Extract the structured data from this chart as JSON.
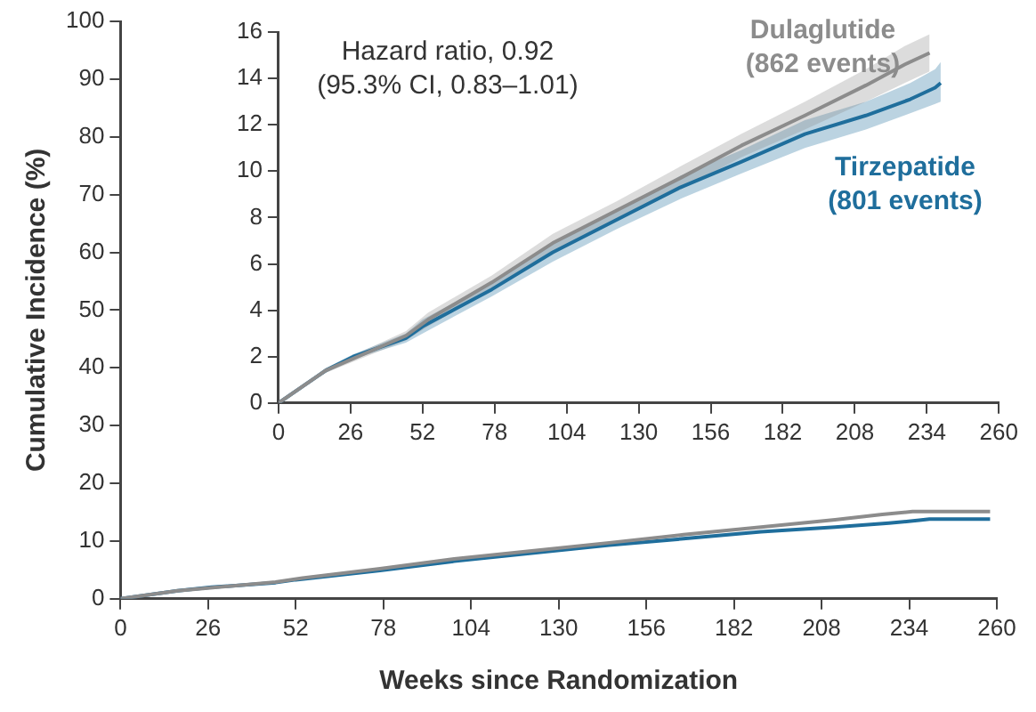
{
  "chart_data": [
    {
      "type": "line",
      "xlabel": "Weeks since Randomization",
      "ylabel": "Cumulative Incidence (%)",
      "xlim": [
        0,
        260
      ],
      "xticks": [
        0,
        26,
        52,
        78,
        104,
        130,
        156,
        182,
        208,
        234,
        260
      ],
      "ylim": [
        0,
        100
      ],
      "yticks": [
        0,
        10,
        20,
        30,
        40,
        50,
        60,
        70,
        80,
        90,
        100
      ],
      "grid": false,
      "legend": false,
      "marker": "none",
      "line_style": "solid",
      "series": [
        {
          "color": "#8c8c8c",
          "x": [
            0,
            17,
            46,
            54,
            77,
            99,
            122,
            145,
            167,
            190,
            212,
            226,
            235,
            240,
            258
          ],
          "values": [
            0,
            1.4,
            2.9,
            3.6,
            5.2,
            6.9,
            8.3,
            9.7,
            11.1,
            12.4,
            13.7,
            14.6,
            15.1,
            15.1,
            15.1
          ]
        },
        {
          "color": "#1f6e9c",
          "x": [
            0,
            17,
            27,
            46,
            52,
            77,
            99,
            122,
            145,
            167,
            190,
            212,
            228,
            237,
            240,
            258
          ],
          "values": [
            0,
            1.4,
            2,
            2.8,
            3.3,
            4.9,
            6.5,
            7.9,
            9.3,
            10.4,
            11.6,
            12.4,
            13.1,
            13.6,
            13.8,
            13.8
          ]
        }
      ]
    },
    {
      "type": "line",
      "annotations": [
        "Hazard ratio, 0.92",
        "(95.3% CI, 0.83–1.01)"
      ],
      "xlim": [
        0,
        260
      ],
      "xticks": [
        0,
        26,
        52,
        78,
        104,
        130,
        156,
        182,
        208,
        234,
        260
      ],
      "ylim": [
        0,
        16
      ],
      "yticks": [
        0,
        2,
        4,
        6,
        8,
        10,
        12,
        14,
        16
      ],
      "grid": false,
      "legend": false,
      "marker": "none",
      "line_style": "solid",
      "series": [
        {
          "name": "Dulaglutide (862 events)",
          "color": "#8c8c8c",
          "x": [
            0,
            17,
            46,
            54,
            77,
            99,
            122,
            145,
            167,
            190,
            212,
            226,
            235
          ],
          "values": [
            0,
            1.4,
            2.9,
            3.6,
            5.2,
            6.9,
            8.3,
            9.7,
            11.1,
            12.4,
            13.7,
            14.6,
            15.1
          ],
          "lower": [
            0,
            1.3,
            2.7,
            3.3,
            4.9,
            6.5,
            7.9,
            9.2,
            10.6,
            11.8,
            13,
            13.8,
            14.3
          ],
          "upper": [
            0,
            1.5,
            3.1,
            3.9,
            5.5,
            7.3,
            8.7,
            10.2,
            11.6,
            13,
            14.4,
            15.4,
            15.9
          ]
        },
        {
          "name": "Tirzepatide (801 events)",
          "color": "#1f6e9c",
          "x": [
            0,
            17,
            27,
            46,
            52,
            77,
            99,
            122,
            145,
            167,
            190,
            212,
            228,
            237,
            239
          ],
          "values": [
            0,
            1.4,
            2,
            2.8,
            3.3,
            4.9,
            6.5,
            7.9,
            9.3,
            10.4,
            11.6,
            12.4,
            13.1,
            13.6,
            13.8
          ],
          "lower": [
            0,
            1.3,
            1.9,
            2.6,
            3,
            4.6,
            6.1,
            7.5,
            8.8,
            9.9,
            11,
            11.8,
            12.5,
            12.9,
            13
          ],
          "upper": [
            0,
            1.5,
            2.1,
            3,
            3.6,
            5.2,
            6.9,
            8.3,
            9.8,
            10.9,
            12.2,
            13,
            13.8,
            14.4,
            14.7
          ]
        }
      ]
    }
  ]
}
